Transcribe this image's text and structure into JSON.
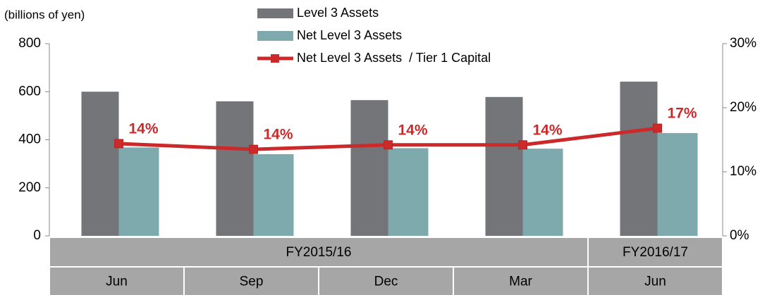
{
  "chart_data": {
    "type": "bar",
    "y_label": "(billions of yen)",
    "categories": [
      "Jun",
      "Sep",
      "Dec",
      "Mar",
      "Jun"
    ],
    "category_groups": [
      "FY2015/16",
      "FY2015/16",
      "FY2015/16",
      "FY2015/16",
      "FY2016/17"
    ],
    "series": [
      {
        "name": "Level 3 Assets",
        "color": "#737578",
        "values": [
          600,
          560,
          565,
          578,
          642
        ]
      },
      {
        "name": "Net Level 3 Assets",
        "color": "#7ea9ad",
        "values": [
          368,
          340,
          365,
          363,
          428
        ]
      },
      {
        "name": "Net Level 3 Assets  / Tier 1 Capital",
        "color": "#cc2a2a",
        "type": "line",
        "axis": "y2",
        "values": [
          14.4,
          13.5,
          14.2,
          14.2,
          16.8
        ],
        "value_labels": [
          "14%",
          "14%",
          "14%",
          "14%",
          "17%"
        ]
      }
    ],
    "ylim": [
      0,
      800
    ],
    "yticks": [
      0,
      200,
      400,
      600,
      800
    ],
    "y2lim": [
      0,
      30
    ],
    "y2ticks": [
      {
        "value": 0,
        "label": "0%"
      },
      {
        "value": 10,
        "label": "10%"
      },
      {
        "value": 20,
        "label": "20%"
      },
      {
        "value": 30,
        "label": "30%"
      }
    ]
  }
}
